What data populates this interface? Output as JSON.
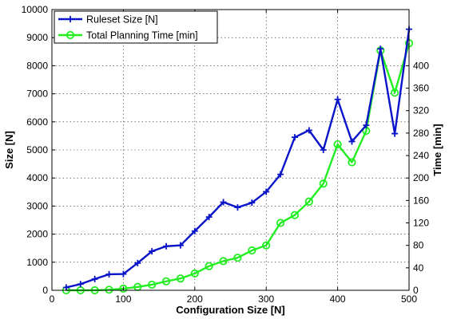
{
  "chart_data": {
    "type": "line",
    "xlabel": "Configuration Size [N]",
    "ylabel_left": "Size [N]",
    "ylabel_right": "Time [min]",
    "xlim": [
      0,
      500
    ],
    "ylim_left": [
      0,
      10000
    ],
    "ylim_right": [
      0,
      500
    ],
    "xticks": [
      0,
      100,
      200,
      300,
      400,
      500
    ],
    "yticks_left": [
      0,
      1000,
      2000,
      3000,
      4000,
      5000,
      6000,
      7000,
      8000,
      9000,
      10000
    ],
    "yticks_right": [
      0,
      40,
      80,
      120,
      160,
      200,
      240,
      280,
      320,
      360,
      400
    ],
    "grid": true,
    "legend_position": "top-left",
    "x": [
      20,
      40,
      60,
      80,
      100,
      120,
      140,
      160,
      180,
      200,
      220,
      240,
      260,
      280,
      300,
      320,
      340,
      360,
      380,
      400,
      420,
      440,
      460,
      480,
      500
    ],
    "series": [
      {
        "name": "Ruleset Size [N]",
        "axis": "left",
        "color": "#0a14c8",
        "marker": "plus",
        "values": [
          100,
          220,
          400,
          570,
          580,
          970,
          1390,
          1570,
          1600,
          2110,
          2610,
          3140,
          2950,
          3120,
          3510,
          4130,
          5450,
          5700,
          5000,
          6800,
          5300,
          5880,
          8600,
          5580,
          9300
        ]
      },
      {
        "name": "Total Planning Time [min]",
        "axis": "right",
        "color": "#22ee22",
        "marker": "circle",
        "values": [
          0,
          0,
          0,
          1,
          3,
          6,
          10,
          16,
          21,
          30,
          43,
          52,
          58,
          71,
          80,
          120,
          134,
          158,
          190,
          260,
          228,
          284,
          427,
          352,
          440
        ]
      }
    ]
  }
}
